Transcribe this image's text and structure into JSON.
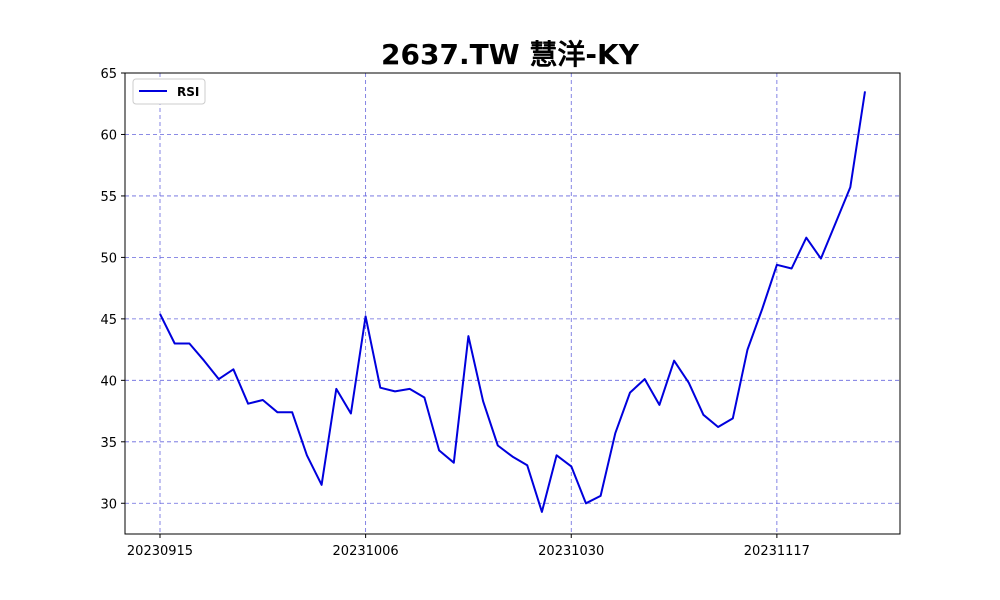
{
  "chart_data": {
    "type": "line",
    "title": "2637.TW 慧洋-KY",
    "xlabel": "",
    "ylabel": "",
    "ylim": [
      27.5,
      65
    ],
    "yticks": [
      30,
      35,
      40,
      45,
      50,
      55,
      60,
      65
    ],
    "xtick_labels": [
      "20230915",
      "20231006",
      "20231030",
      "20231117"
    ],
    "xtick_indices": [
      0,
      14,
      28,
      42
    ],
    "grid": true,
    "legend_position": "top-left",
    "colors": {
      "line": "#0000dd",
      "grid": "#6666dd"
    },
    "series": [
      {
        "name": "RSI",
        "values": [
          45.4,
          43.0,
          43.0,
          41.6,
          40.1,
          40.9,
          38.1,
          38.4,
          37.4,
          37.4,
          33.9,
          31.5,
          39.3,
          37.3,
          45.2,
          39.4,
          39.1,
          39.3,
          38.6,
          34.3,
          33.3,
          43.6,
          38.3,
          34.7,
          33.8,
          33.1,
          29.3,
          33.9,
          33.0,
          30.0,
          30.6,
          35.7,
          39.0,
          40.1,
          38.0,
          41.6,
          39.8,
          37.2,
          36.2,
          36.9,
          42.5,
          45.8,
          49.4,
          49.1,
          51.6,
          49.9,
          52.8,
          55.7,
          63.5
        ]
      }
    ]
  }
}
